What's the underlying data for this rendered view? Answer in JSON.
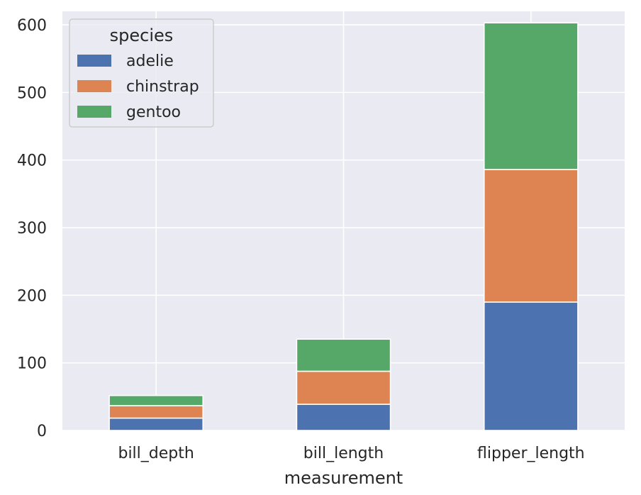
{
  "chart_data": {
    "type": "bar",
    "stacked": true,
    "categories": [
      "bill_depth",
      "bill_length",
      "flipper_length"
    ],
    "series": [
      {
        "name": "adelie",
        "color": "#4c72b0",
        "values": [
          18.3,
          38.8,
          190.0
        ]
      },
      {
        "name": "chinstrap",
        "color": "#dd8452",
        "values": [
          18.4,
          48.8,
          196.0
        ]
      },
      {
        "name": "gentoo",
        "color": "#55a868",
        "values": [
          15.0,
          47.5,
          217.0
        ]
      }
    ],
    "title": "",
    "xlabel": "measurement",
    "ylabel": "",
    "ylim": [
      0,
      620
    ],
    "yticks": [
      0,
      100,
      200,
      300,
      400,
      500,
      600
    ],
    "grid": true,
    "background": "#eaeaf2",
    "legend": {
      "title": "species",
      "placement": "top-left"
    }
  }
}
